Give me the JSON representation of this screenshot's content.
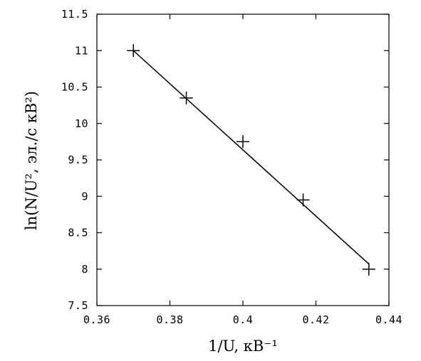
{
  "chart_data": {
    "type": "scatter",
    "xlabel": "1/U, кВ⁻¹",
    "ylabel": "ln(N/U², эл./с кВ²)",
    "xlim": [
      0.36,
      0.44
    ],
    "ylim": [
      7.5,
      11.5
    ],
    "x_ticks": [
      "0.36",
      "0.38",
      "0.4",
      "0.42",
      "0.44"
    ],
    "x_tick_values": [
      0.36,
      0.38,
      0.4,
      0.42,
      0.44
    ],
    "y_ticks": [
      "7.5",
      "8",
      "8.5",
      "9",
      "9.5",
      "10",
      "10.5",
      "11",
      "11.5"
    ],
    "y_tick_values": [
      7.5,
      8,
      8.5,
      9,
      9.5,
      10,
      10.5,
      11,
      11.5
    ],
    "points": {
      "x": [
        0.37,
        0.3845,
        0.4,
        0.4165,
        0.4345
      ],
      "y": [
        11.0,
        10.35,
        9.75,
        8.95,
        8.0
      ]
    },
    "fit_line": {
      "x": [
        0.37,
        0.4345
      ],
      "y": [
        11.0,
        8.07
      ]
    },
    "marker": "plus",
    "grid": false
  }
}
